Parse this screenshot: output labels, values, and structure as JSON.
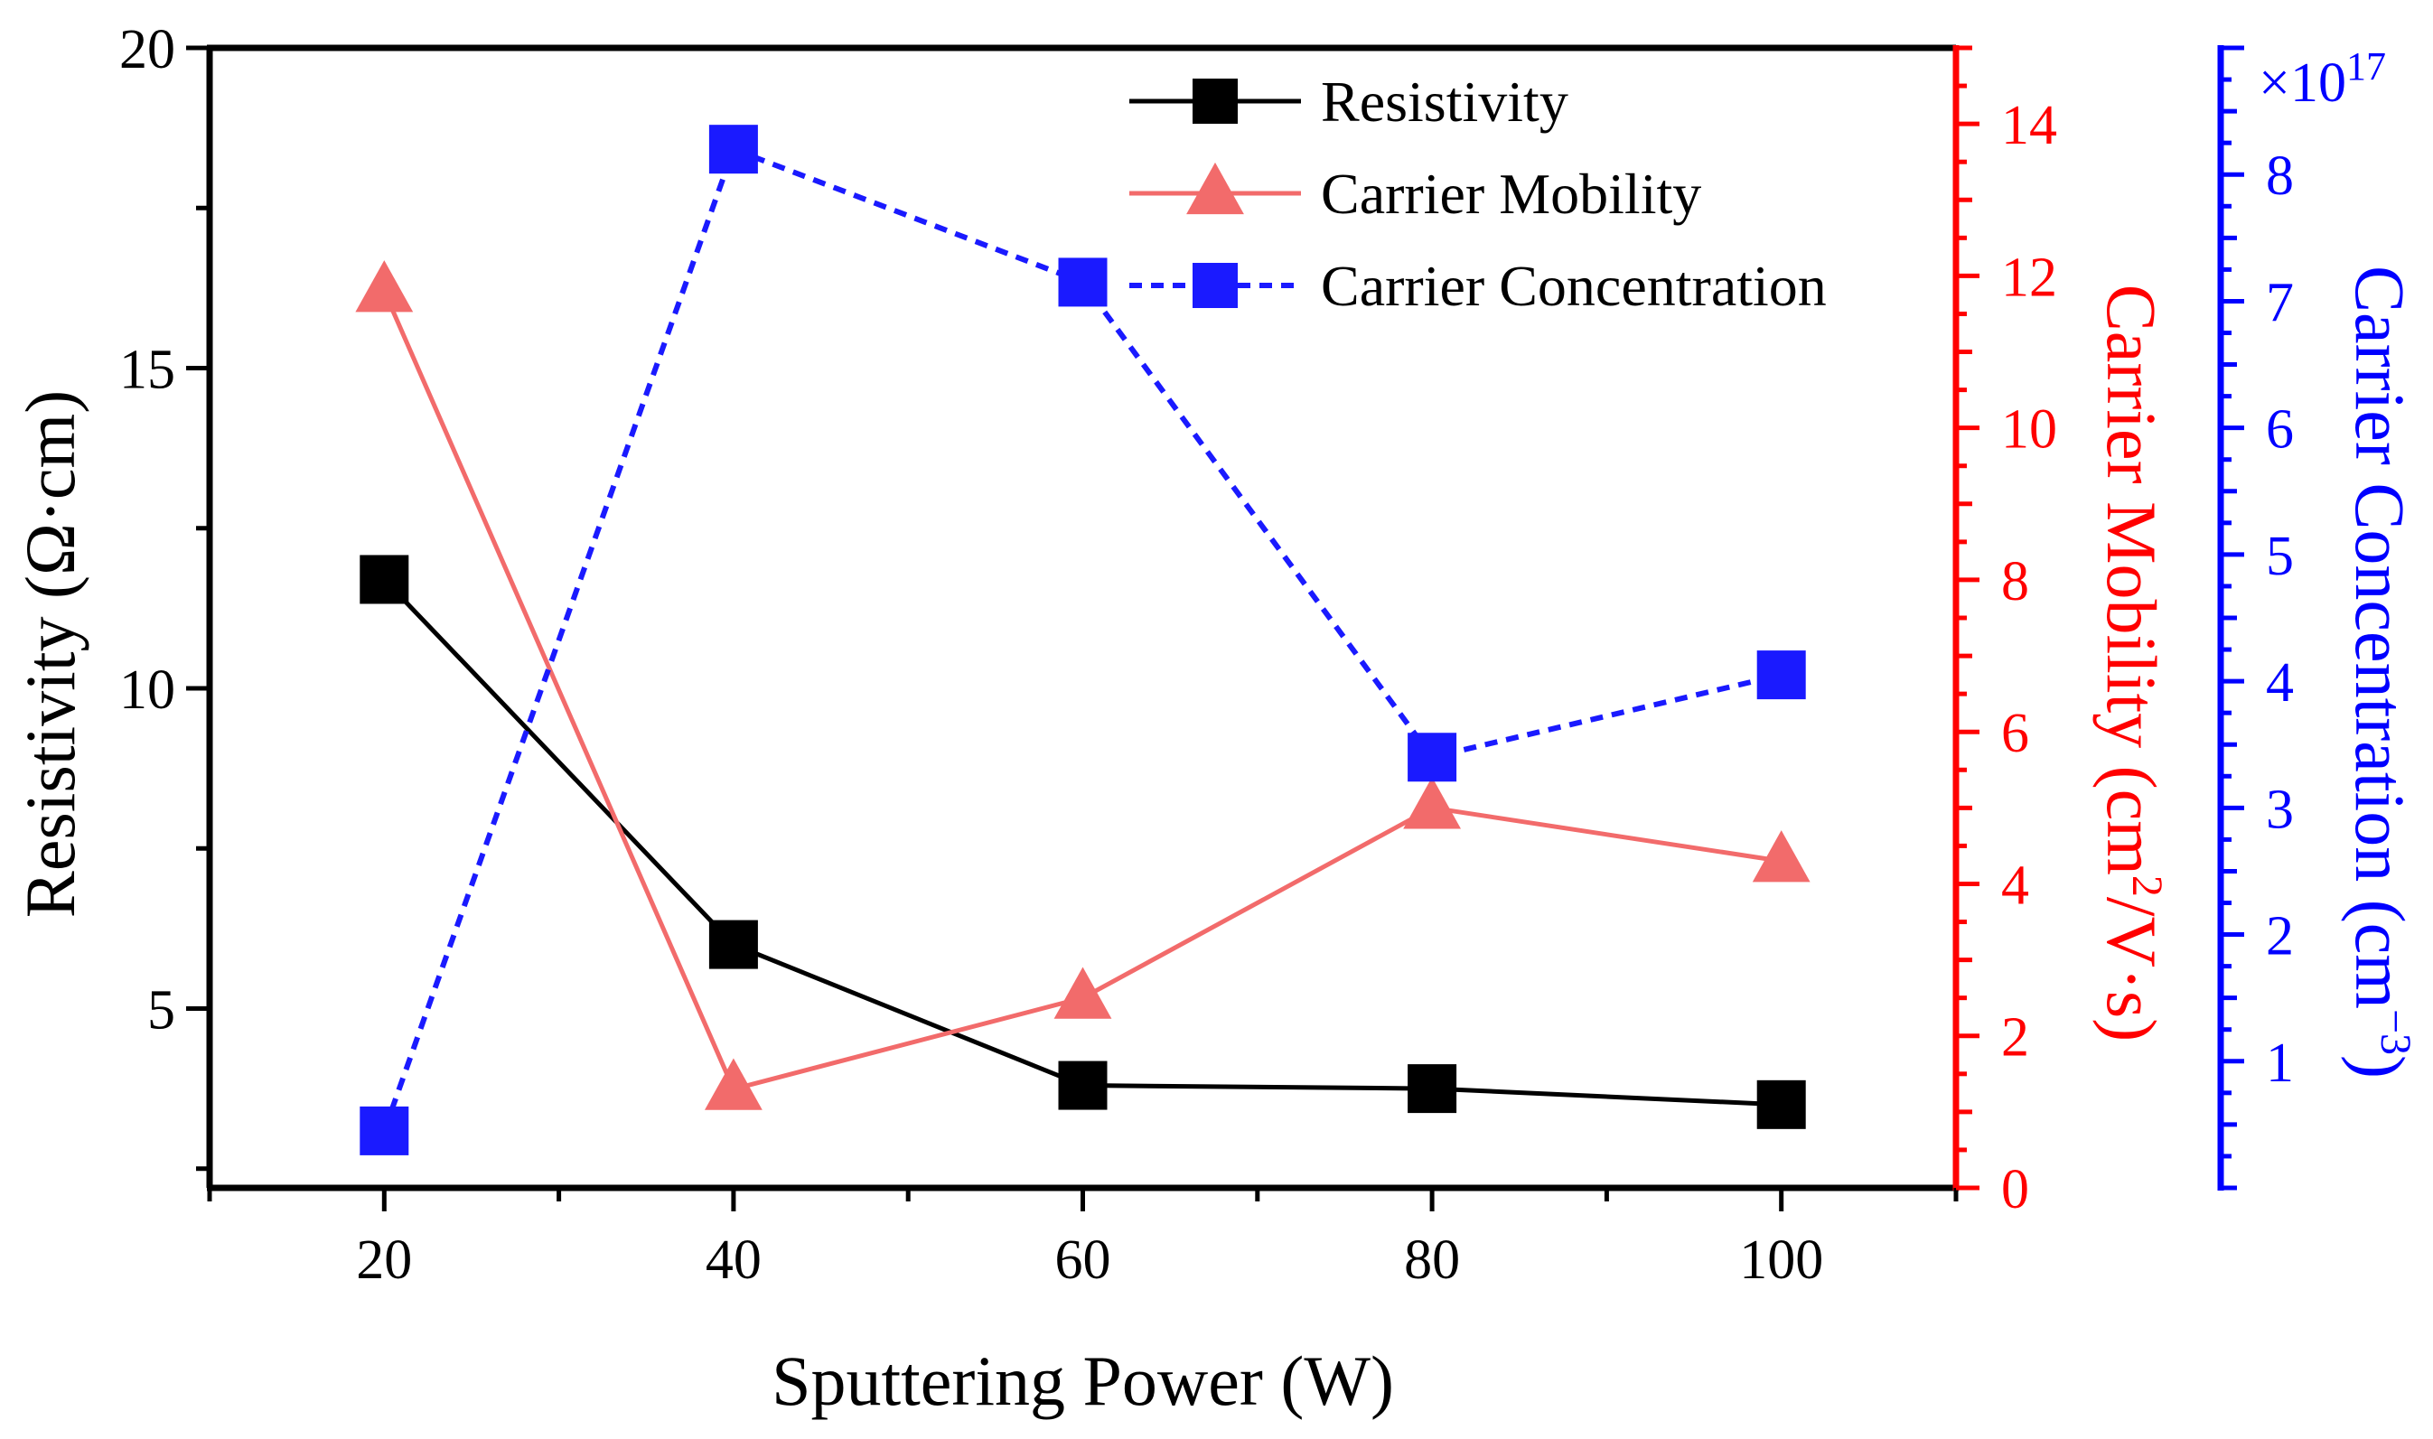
{
  "chart_data": {
    "type": "line",
    "x": [
      20,
      40,
      60,
      80,
      100
    ],
    "xlabel": "Sputtering Power (W)",
    "xlim": [
      10,
      110
    ],
    "xticks": [
      20,
      40,
      60,
      80,
      100
    ],
    "series": [
      {
        "name": "Resistivity",
        "axis": "left",
        "marker": "square",
        "line": "solid",
        "color": "#000000",
        "values": [
          11.7,
          6.0,
          3.8,
          3.75,
          3.5
        ]
      },
      {
        "name": "Carrier Mobility",
        "axis": "right1",
        "marker": "triangle",
        "line": "solid",
        "color": "#f26b6b",
        "values": [
          11.8,
          1.3,
          2.5,
          5.0,
          4.3
        ]
      },
      {
        "name": "Carrier Concentration",
        "axis": "right2",
        "marker": "square",
        "line": "dashed",
        "color": "#1a1aff",
        "values": [
          0.45,
          8.2,
          7.15,
          3.4,
          4.05
        ]
      }
    ],
    "axes": {
      "left": {
        "label": "Resistivity (Ω·cm)",
        "ylim": [
          2.2,
          20
        ],
        "ticks": [
          5,
          10,
          15,
          20
        ],
        "color": "#000000"
      },
      "right1": {
        "label_main": "Carrier Mobility (cm",
        "label_sup": "2",
        "label_tail": "/V·s)",
        "ylim": [
          0,
          15
        ],
        "ticks": [
          0,
          2,
          4,
          6,
          8,
          10,
          12,
          14
        ],
        "color": "#ff0000"
      },
      "right2": {
        "label_main": "Carrier Concentration (cm",
        "label_sup": "−3",
        "label_tail": ")",
        "ylim": [
          0,
          9
        ],
        "ticks": [
          1,
          2,
          3,
          4,
          5,
          6,
          7,
          8
        ],
        "multiplier_base": "×10",
        "multiplier_exp": "17",
        "color": "#0000ff"
      }
    },
    "legend_position": "top-right",
    "grid": false
  }
}
